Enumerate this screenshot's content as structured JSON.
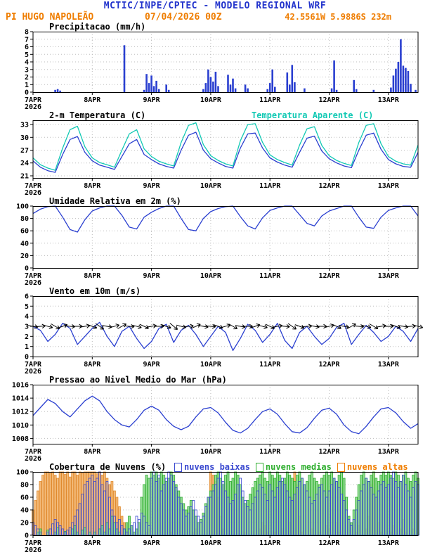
{
  "header": {
    "title": "MCTIC/INPE/CPTEC - MODELO REGIONAL WRF",
    "station": "PI HUGO NAPOLEÃO",
    "run": "07/04/2026 00Z",
    "location": "42.5561W 5.9886S 232m"
  },
  "x_axis": {
    "hours_total": 157,
    "tick_hours": [
      0,
      24,
      48,
      72,
      96,
      120,
      144
    ],
    "tick_labels": [
      "7APR",
      "8APR",
      "9APR",
      "10APR",
      "11APR",
      "12APR",
      "13APR"
    ],
    "year": "2026"
  },
  "chart_data": [
    {
      "type": "bar",
      "title": "Precipitacao (mm/h)",
      "ylim": [
        0,
        8
      ],
      "yticks": [
        0,
        1,
        2,
        3,
        4,
        5,
        6,
        7,
        8
      ],
      "bar_color": "#2a3fd0",
      "step_hours": 1,
      "values": [
        0,
        0,
        0,
        0,
        0,
        0,
        0,
        0,
        0,
        0.3,
        0.4,
        0.2,
        0,
        0,
        0,
        0,
        0,
        0,
        0,
        0,
        0,
        0,
        0,
        0,
        0,
        0,
        0,
        0,
        0,
        0,
        0,
        0,
        0,
        0,
        0,
        0,
        0,
        6.2,
        0,
        0,
        0,
        0,
        0,
        0,
        0,
        0.3,
        2.4,
        1.2,
        2.2,
        0.8,
        1.5,
        0.4,
        0,
        0,
        1.0,
        0.3,
        0,
        0,
        0,
        0,
        0,
        0,
        0,
        0,
        0,
        0,
        0,
        0,
        0,
        0.4,
        1.2,
        3.0,
        2.0,
        1.4,
        2.7,
        0.8,
        0,
        0,
        0,
        2.3,
        1.0,
        1.8,
        0.5,
        0,
        0,
        0,
        1.0,
        0.5,
        0,
        0,
        0,
        0,
        0,
        0,
        0,
        0.4,
        1.2,
        3.0,
        0.7,
        0,
        0,
        0,
        0,
        2.6,
        1.0,
        3.6,
        1.3,
        0,
        0,
        0,
        0.5,
        0,
        0,
        0,
        0,
        0,
        0,
        0,
        0,
        0,
        0,
        0.5,
        4.2,
        0.3,
        0,
        0,
        0,
        0,
        0,
        0,
        1.6,
        0.4,
        0,
        0,
        0,
        0,
        0,
        0,
        0.3,
        0,
        0,
        0,
        0,
        0,
        0,
        0.6,
        2.2,
        3.1,
        4.0,
        7.0,
        3.5,
        3.2,
        2.8,
        1.1,
        0,
        0.3,
        0
      ]
    },
    {
      "type": "line",
      "title": "2-m Temperatura (C)",
      "legend": "Temperatura Aparente (C)",
      "ylim": [
        20.5,
        34
      ],
      "yticks": [
        21,
        24,
        27,
        30,
        33
      ],
      "step_hours": 3,
      "series": [
        {
          "name": "2-m Temperatura (C)",
          "color": "#2a3fd0",
          "values": [
            24.5,
            23.0,
            22.2,
            21.8,
            26.0,
            29.5,
            30.2,
            26.5,
            24.5,
            23.5,
            23.0,
            22.5,
            25.5,
            28.5,
            29.5,
            26.0,
            24.8,
            23.8,
            23.2,
            22.8,
            27.0,
            30.5,
            31.2,
            27.0,
            25.0,
            24.0,
            23.2,
            22.8,
            27.5,
            30.8,
            31.0,
            27.5,
            25.2,
            24.2,
            23.5,
            23.0,
            26.5,
            29.8,
            30.3,
            26.8,
            25.0,
            24.0,
            23.3,
            22.9,
            27.0,
            30.5,
            31.0,
            27.2,
            24.8,
            23.8,
            23.2,
            23.0,
            26.5
          ]
        },
        {
          "name": "Temperatura Aparente (C)",
          "color": "#12c9b4",
          "values": [
            25.2,
            23.6,
            22.8,
            22.3,
            27.5,
            31.8,
            32.6,
            27.8,
            25.2,
            24.1,
            23.6,
            23.0,
            27.0,
            30.8,
            31.8,
            27.3,
            25.5,
            24.4,
            23.8,
            23.3,
            28.8,
            32.8,
            33.4,
            28.3,
            25.7,
            24.6,
            23.8,
            23.3,
            29.2,
            33.0,
            33.2,
            28.8,
            25.9,
            24.8,
            24.1,
            23.5,
            28.2,
            32.0,
            32.5,
            28.1,
            25.7,
            24.6,
            23.9,
            23.4,
            28.8,
            32.8,
            33.2,
            28.5,
            25.5,
            24.4,
            23.8,
            23.5,
            28.2
          ]
        }
      ]
    },
    {
      "type": "line",
      "title": "Umidade Relativa em 2m (%)",
      "ylim": [
        0,
        100
      ],
      "yticks": [
        0,
        20,
        40,
        60,
        80,
        100
      ],
      "step_hours": 3,
      "series": [
        {
          "name": "Umidade Relativa",
          "color": "#2a3fd0",
          "values": [
            88,
            95,
            99,
            100,
            82,
            62,
            58,
            78,
            92,
            97,
            100,
            100,
            85,
            66,
            63,
            82,
            90,
            96,
            100,
            100,
            80,
            62,
            60,
            80,
            91,
            96,
            99,
            100,
            83,
            68,
            63,
            81,
            93,
            97,
            100,
            100,
            86,
            72,
            68,
            84,
            92,
            96,
            100,
            100,
            82,
            66,
            64,
            82,
            93,
            97,
            100,
            100,
            84
          ]
        }
      ]
    },
    {
      "type": "wind",
      "title": "Vento em 10m (m/s)",
      "ylim": [
        0,
        6
      ],
      "yticks": [
        0,
        1,
        2,
        3,
        4,
        5,
        6
      ],
      "step_hours": 3,
      "line_color": "#2a3fd0",
      "barb_y": 3,
      "speed": [
        3.0,
        2.6,
        1.5,
        2.2,
        3.3,
        2.8,
        1.2,
        2.0,
        2.8,
        3.4,
        2.0,
        1.0,
        2.5,
        3.0,
        1.8,
        0.8,
        1.5,
        2.8,
        3.2,
        1.4,
        2.6,
        3.1,
        2.2,
        1.0,
        2.0,
        3.0,
        2.4,
        0.6,
        1.8,
        3.2,
        2.6,
        1.4,
        2.2,
        3.3,
        1.6,
        0.8,
        2.4,
        3.0,
        2.0,
        1.2,
        1.8,
        2.9,
        3.3,
        1.2,
        2.2,
        3.1,
        2.4,
        1.5,
        2.0,
        3.0,
        2.5,
        1.5,
        2.8
      ],
      "barb_angles": [
        10,
        -5,
        15,
        30,
        -20,
        5,
        0,
        -10,
        20,
        35,
        10,
        -15,
        -30,
        5,
        15,
        25,
        -10,
        0,
        20,
        40,
        15,
        -5,
        -25,
        10,
        5,
        20,
        -15,
        30,
        10,
        0,
        -20,
        15,
        25,
        -10,
        5,
        35,
        20,
        -5,
        10,
        0,
        -15,
        25,
        10,
        -30,
        5,
        15,
        30,
        -10,
        0,
        20,
        10,
        -5,
        15
      ]
    },
    {
      "type": "line",
      "title": "Pressao ao Nivel Medio do Mar (hPa)",
      "ylim": [
        1007.2,
        1016
      ],
      "yticks": [
        1008,
        1010,
        1012,
        1014,
        1016
      ],
      "step_hours": 3,
      "series": [
        {
          "name": "Pressao ao Nivel Medio do Mar",
          "color": "#2a3fd0",
          "values": [
            1011.4,
            1012.6,
            1013.8,
            1013.2,
            1012.0,
            1011.2,
            1012.4,
            1013.6,
            1014.3,
            1013.6,
            1012.0,
            1010.8,
            1010.0,
            1009.7,
            1010.8,
            1012.2,
            1012.8,
            1012.2,
            1010.8,
            1009.8,
            1009.3,
            1009.8,
            1011.2,
            1012.4,
            1012.6,
            1011.8,
            1010.4,
            1009.2,
            1008.8,
            1009.5,
            1010.8,
            1012.0,
            1012.4,
            1011.6,
            1010.2,
            1009.0,
            1008.8,
            1009.6,
            1011.0,
            1012.2,
            1012.5,
            1011.6,
            1010.0,
            1009.0,
            1008.7,
            1009.8,
            1011.2,
            1012.4,
            1012.6,
            1011.8,
            1010.5,
            1009.5,
            1010.2
          ]
        }
      ]
    },
    {
      "type": "cloudbars",
      "title": "Cobertura de Nuvens (%)",
      "ylim": [
        0,
        100
      ],
      "yticks": [
        0,
        20,
        40,
        60,
        80,
        100
      ],
      "step_hours": 1,
      "legend": [
        {
          "label": "nuvens baixas",
          "color": "#3a49d0"
        },
        {
          "label": "nuvens medias",
          "color": "#2fae2f"
        },
        {
          "label": "nuvens altas",
          "color": "#ef7d00"
        }
      ],
      "series": [
        {
          "name": "nuvens baixas",
          "color": "#3a49d0",
          "fill": "none",
          "values": [
            20,
            15,
            10,
            5,
            0,
            0,
            5,
            10,
            18,
            25,
            20,
            15,
            10,
            5,
            8,
            12,
            20,
            30,
            40,
            50,
            65,
            80,
            85,
            90,
            95,
            85,
            90,
            100,
            80,
            70,
            85,
            60,
            40,
            30,
            20,
            25,
            15,
            10,
            5,
            10,
            15,
            20,
            30,
            25,
            35,
            30,
            20,
            15,
            90,
            100,
            85,
            95,
            70,
            80,
            90,
            100,
            95,
            85,
            75,
            60,
            50,
            40,
            30,
            35,
            45,
            55,
            40,
            30,
            20,
            30,
            45,
            60,
            60,
            70,
            80,
            90,
            100,
            85,
            70,
            60,
            50,
            55,
            65,
            80,
            90,
            70,
            55,
            45,
            40,
            50,
            60,
            70,
            80,
            75,
            65,
            55,
            80,
            70,
            60,
            75,
            85,
            90,
            80,
            70,
            60,
            55,
            65,
            75,
            85,
            90,
            80,
            70,
            60,
            50,
            55,
            65,
            75,
            80,
            70,
            60,
            70,
            80,
            90,
            85,
            75,
            65,
            55,
            40,
            25,
            15,
            25,
            40,
            55,
            70,
            80,
            90,
            85,
            75,
            65,
            60,
            70,
            80,
            85,
            75,
            80,
            90,
            100,
            85,
            75,
            85,
            95,
            80,
            70,
            60,
            75,
            85,
            80
          ]
        },
        {
          "name": "nuvens medias",
          "color": "#2fae2f",
          "fill": "#8ad88a",
          "values": [
            0,
            0,
            5,
            10,
            0,
            0,
            8,
            0,
            0,
            5,
            12,
            0,
            0,
            6,
            0,
            0,
            10,
            15,
            5,
            0,
            8,
            12,
            0,
            5,
            0,
            5,
            0,
            10,
            15,
            5,
            20,
            10,
            30,
            20,
            10,
            5,
            0,
            10,
            20,
            30,
            15,
            5,
            10,
            20,
            60,
            80,
            95,
            90,
            100,
            95,
            100,
            90,
            100,
            95,
            85,
            90,
            100,
            95,
            80,
            70,
            60,
            50,
            40,
            45,
            55,
            40,
            30,
            20,
            25,
            35,
            50,
            60,
            70,
            80,
            95,
            100,
            90,
            80,
            95,
            100,
            85,
            90,
            100,
            95,
            80,
            60,
            50,
            55,
            65,
            75,
            85,
            90,
            95,
            100,
            90,
            85,
            100,
            95,
            90,
            100,
            95,
            85,
            90,
            100,
            95,
            90,
            85,
            95,
            100,
            90,
            80,
            85,
            95,
            100,
            90,
            85,
            80,
            90,
            95,
            100,
            95,
            100,
            90,
            85,
            95,
            100,
            90,
            60,
            30,
            20,
            40,
            60,
            80,
            95,
            100,
            90,
            85,
            95,
            100,
            90,
            85,
            95,
            100,
            95,
            100,
            95,
            90,
            100,
            95,
            85,
            95,
            100,
            90,
            85,
            95,
            100,
            90
          ]
        },
        {
          "name": "nuvens altas",
          "color": "#e08a2e",
          "fill": "#f2b26a",
          "values": [
            40,
            55,
            70,
            85,
            95,
            100,
            100,
            98,
            100,
            95,
            90,
            100,
            100,
            96,
            100,
            92,
            100,
            100,
            95,
            100,
            98,
            100,
            100,
            100,
            100,
            100,
            97,
            100,
            95,
            100,
            90,
            80,
            85,
            70,
            60,
            45,
            30,
            20,
            10,
            5,
            0,
            0,
            0,
            0,
            0,
            0,
            5,
            10,
            0,
            0,
            0,
            0,
            0,
            0,
            0,
            0,
            5,
            0,
            0,
            0,
            0,
            0,
            0,
            0,
            0,
            5,
            10,
            0,
            0,
            0,
            0,
            0,
            100,
            95,
            85,
            60,
            30,
            10,
            0,
            0,
            0,
            0,
            0,
            0,
            0,
            0,
            5,
            0,
            0,
            0,
            0,
            0,
            10,
            20,
            15,
            5,
            0,
            0,
            5,
            0,
            0,
            10,
            0,
            0,
            20,
            60,
            100,
            80,
            30,
            5,
            0,
            0,
            0,
            10,
            0,
            0,
            5,
            0,
            0,
            15,
            10,
            0,
            0,
            20,
            5,
            0,
            0,
            0,
            0,
            0,
            0,
            5,
            15,
            0,
            0,
            10,
            30,
            80,
            100,
            60,
            20,
            5,
            0,
            0,
            0,
            5,
            15,
            0,
            0,
            10,
            25,
            5,
            0,
            0,
            10,
            0,
            5
          ]
        }
      ]
    }
  ]
}
